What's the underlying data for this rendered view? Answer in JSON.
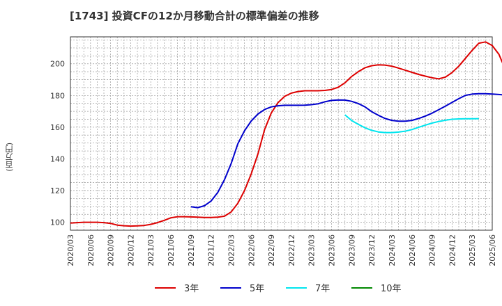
{
  "chart_data": {
    "type": "line",
    "title": "[1743]  投資CFの12か月移動合計の標準偏差の推移",
    "ylabel": "(百万円)",
    "xlabel": "",
    "ylim": [
      95,
      217
    ],
    "y_ticks": [
      100,
      120,
      140,
      160,
      180,
      200
    ],
    "x_tick_labels": [
      "2020/03",
      "2020/06",
      "2020/09",
      "2020/12",
      "2021/03",
      "2021/06",
      "2021/09",
      "2021/12",
      "2022/03",
      "2022/06",
      "2022/09",
      "2022/12",
      "2023/03",
      "2023/06",
      "2023/09",
      "2023/12",
      "2024/03",
      "2024/06",
      "2024/09",
      "2024/12",
      "2025/03",
      "2025/06"
    ],
    "grid": true,
    "legend_position": "bottom",
    "series": [
      {
        "name": "3年",
        "color": "#dd0000",
        "start_month_index": 0,
        "values": [
          99.5,
          99.8,
          100,
          100,
          100,
          99.8,
          99.3,
          98.2,
          97.8,
          97.6,
          97.7,
          98,
          98.7,
          99.8,
          101.2,
          102.8,
          103.5,
          103.5,
          103.4,
          103.2,
          103,
          103,
          103.2,
          103.8,
          106.5,
          112,
          120,
          130.5,
          143,
          158.5,
          169,
          175.5,
          179.5,
          181.5,
          182.5,
          183,
          183,
          183,
          183.2,
          183.8,
          185.2,
          188,
          192,
          195,
          197.5,
          198.8,
          199.3,
          199.2,
          198.5,
          197.3,
          196,
          194.6,
          193.3,
          192.2,
          191.2,
          190.5,
          191.6,
          194.5,
          198.5,
          203.5,
          208.5,
          213,
          213.8,
          211.5,
          206,
          196,
          182.5,
          166
        ]
      },
      {
        "name": "5年",
        "color": "#0000cc",
        "start_month_index": 18,
        "values": [
          109.8,
          109.2,
          110.4,
          113.4,
          118.8,
          126.8,
          137,
          149.5,
          157.7,
          163.9,
          168.3,
          171.2,
          172.8,
          173.5,
          173.8,
          173.8,
          173.8,
          173.9,
          174.2,
          174.8,
          176,
          176.9,
          177.2,
          177.1,
          176.3,
          174.9,
          172.8,
          169.8,
          167.5,
          165.5,
          164.3,
          163.8,
          163.8,
          164.3,
          165.5,
          167,
          168.8,
          171,
          173.3,
          175.6,
          178,
          180.1,
          180.9,
          181.1,
          181.1,
          180.9,
          180.6,
          180.3
        ]
      },
      {
        "name": "7年",
        "color": "#00e5ee",
        "start_month_index": 41,
        "values": [
          167.8,
          164.2,
          161.8,
          159.6,
          158,
          157,
          156.6,
          156.6,
          156.9,
          157.5,
          158.5,
          159.9,
          161.3,
          162.6,
          163.6,
          164.4,
          165,
          165.2,
          165.3,
          165.3,
          165.4
        ]
      },
      {
        "name": "10年",
        "color": "#008800",
        "start_month_index": 0,
        "values": []
      }
    ]
  }
}
